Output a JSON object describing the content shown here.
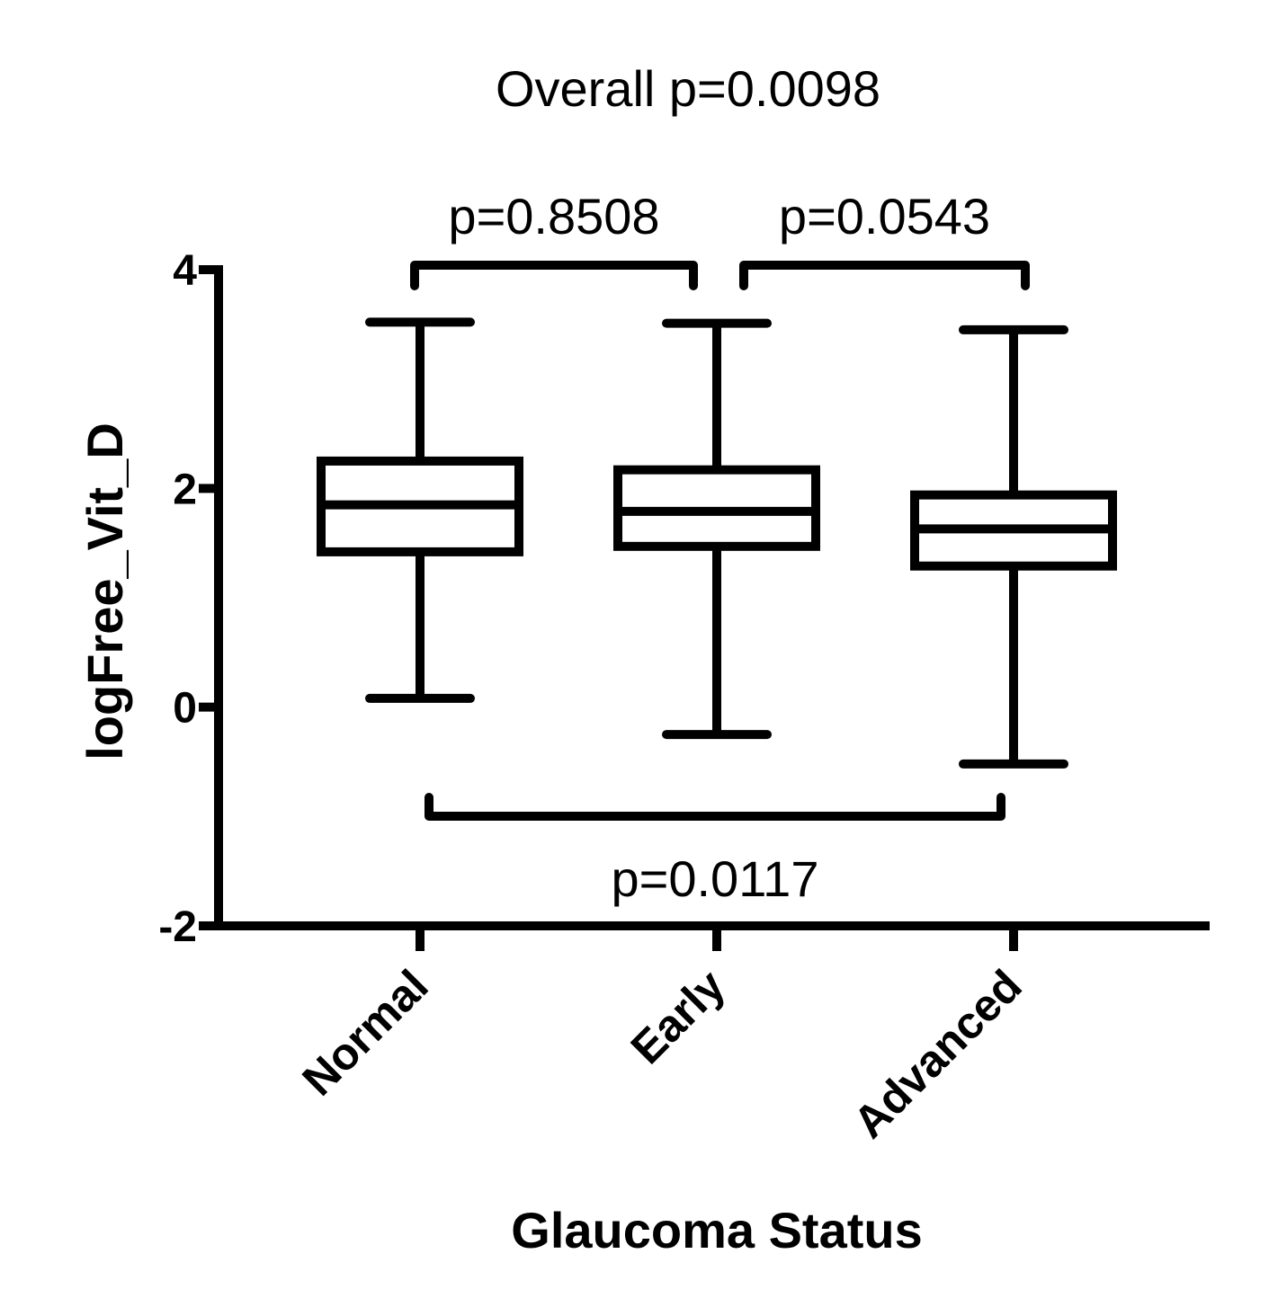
{
  "chart_data": {
    "type": "box",
    "title": "Overall p=0.0098",
    "xlabel": "Glaucoma Status",
    "ylabel": "logFree_Vit_D",
    "ylim": [
      -2,
      4
    ],
    "yticks": [
      -2,
      0,
      2,
      4
    ],
    "yticklabels": [
      "-2",
      "0",
      "2",
      "4"
    ],
    "categories": [
      "Normal",
      "Early",
      "Advanced"
    ],
    "boxes": [
      {
        "category": "Normal",
        "min": 0.08,
        "q1": 1.42,
        "median": 1.85,
        "q3": 2.25,
        "max": 3.52
      },
      {
        "category": "Early",
        "min": -0.25,
        "q1": 1.47,
        "median": 1.79,
        "q3": 2.17,
        "max": 3.51
      },
      {
        "category": "Advanced",
        "min": -0.52,
        "q1": 1.29,
        "median": 1.63,
        "q3": 1.94,
        "max": 3.45
      }
    ],
    "comparisons": [
      {
        "from": "Normal",
        "to": "Early",
        "label": "p=0.8508",
        "position": "above"
      },
      {
        "from": "Early",
        "to": "Advanced",
        "label": "p=0.0543",
        "position": "above"
      },
      {
        "from": "Normal",
        "to": "Advanced",
        "label": "p=0.0117",
        "position": "below"
      }
    ],
    "grid": false,
    "legend": "none",
    "colors": {
      "stroke": "#000000",
      "fill": "#ffffff"
    }
  }
}
